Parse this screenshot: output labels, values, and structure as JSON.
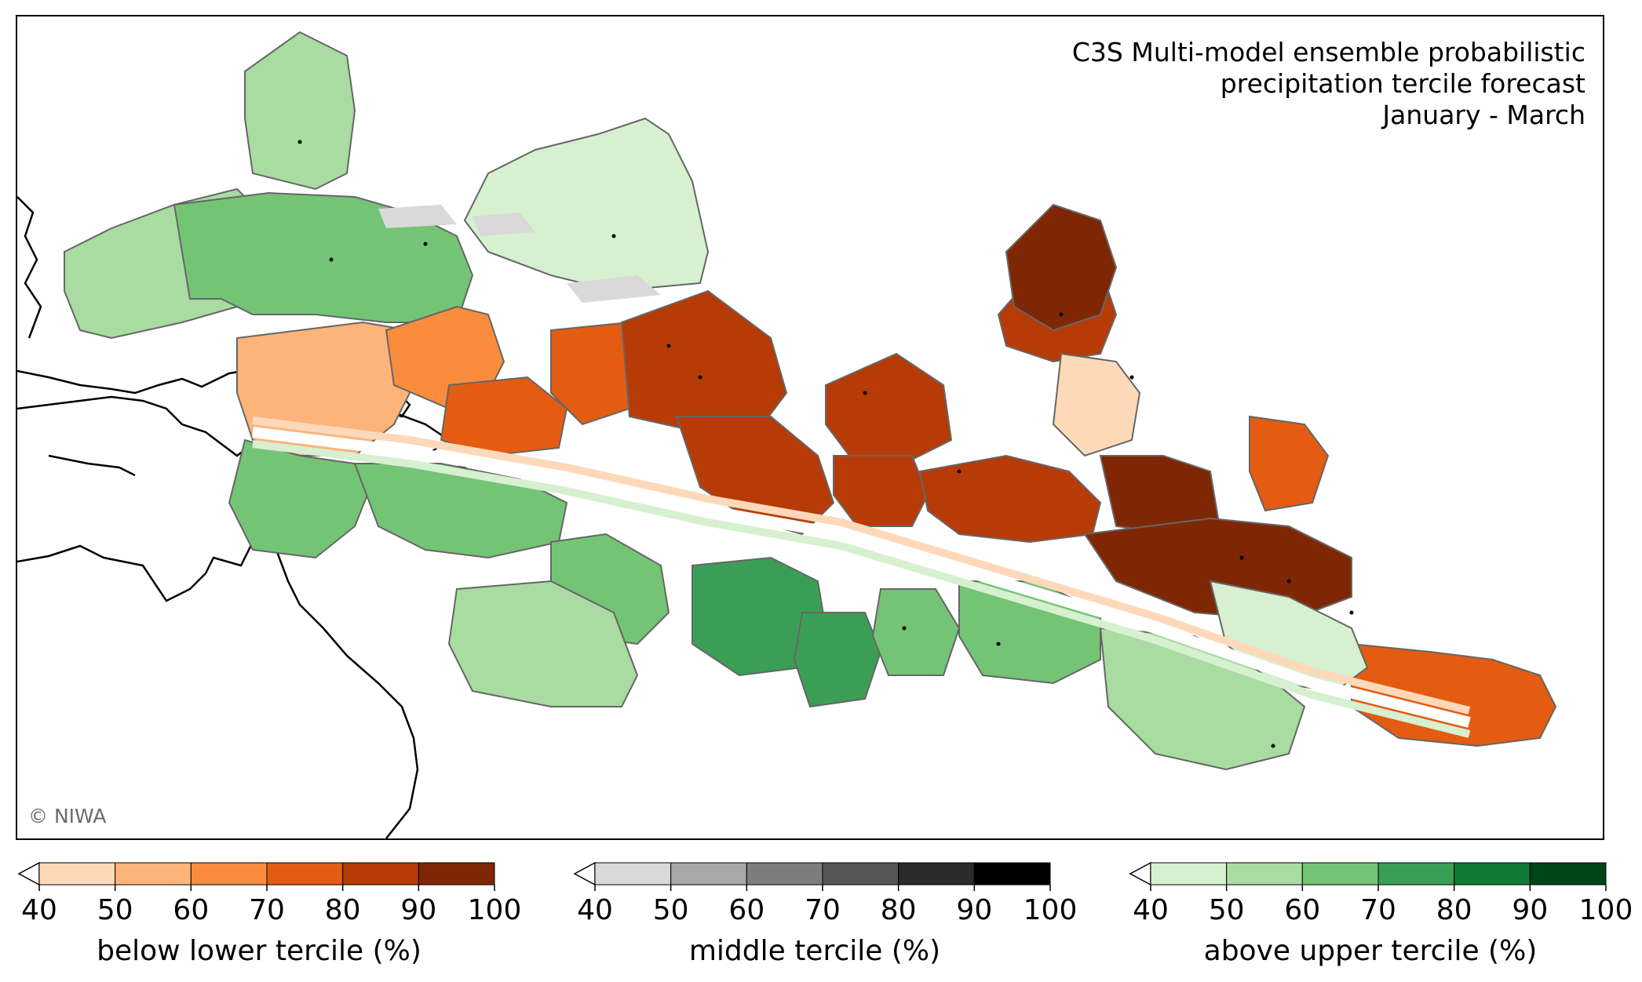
{
  "title": {
    "line1": "C3S Multi-model ensemble probabilistic",
    "line2": "precipitation tercile forecast",
    "line3": "January - March"
  },
  "credit": "© NIWA",
  "legends": [
    {
      "id": "below",
      "label": "below lower tercile (%)",
      "ticks": [
        "40",
        "50",
        "60",
        "70",
        "80",
        "90",
        "100"
      ],
      "colors": [
        "#fdd9b9",
        "#fcb47a",
        "#f98c3d",
        "#e35c12",
        "#b73b07",
        "#7f2704"
      ]
    },
    {
      "id": "middle",
      "label": "middle tercile (%)",
      "ticks": [
        "40",
        "50",
        "60",
        "70",
        "80",
        "90",
        "100"
      ],
      "colors": [
        "#d9d9d9",
        "#a8a8a8",
        "#7d7d7d",
        "#565656",
        "#2b2b2b",
        "#000000"
      ]
    },
    {
      "id": "above",
      "label": "above upper tercile (%)",
      "ticks": [
        "40",
        "50",
        "60",
        "70",
        "80",
        "90",
        "100"
      ],
      "colors": [
        "#d6f0d0",
        "#a8dca0",
        "#74c476",
        "#3a9f55",
        "#117a34",
        "#00441b"
      ]
    }
  ],
  "palette": {
    "boundary": "#666666",
    "coast": "#000000"
  }
}
